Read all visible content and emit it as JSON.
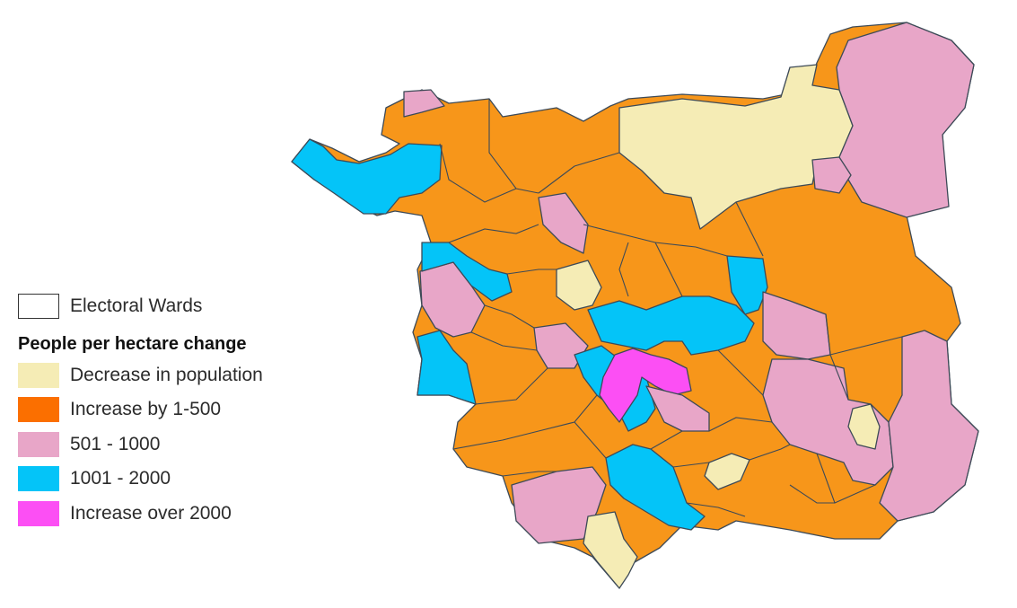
{
  "legend": {
    "wards_label": "Electoral Wards",
    "title": "People per hectare change",
    "items": [
      {
        "label": "Decrease in population",
        "color": "#f5ecb5"
      },
      {
        "label": "Increase by 1-500",
        "color": "#fb6f00"
      },
      {
        "label": "501 - 1000",
        "color": "#e8a6c8"
      },
      {
        "label": "1001 - 2000",
        "color": "#04c4f8"
      },
      {
        "label": "Increase over 2000",
        "color": "#fc4ff4"
      }
    ]
  },
  "map": {
    "fill_orange": "#f7961a",
    "fill_pink": "#e8a6c8",
    "fill_cyan": "#04c4f8",
    "fill_magenta": "#fc4ff4",
    "fill_cream": "#f5ecb5",
    "border_color": "#3d4a57"
  }
}
